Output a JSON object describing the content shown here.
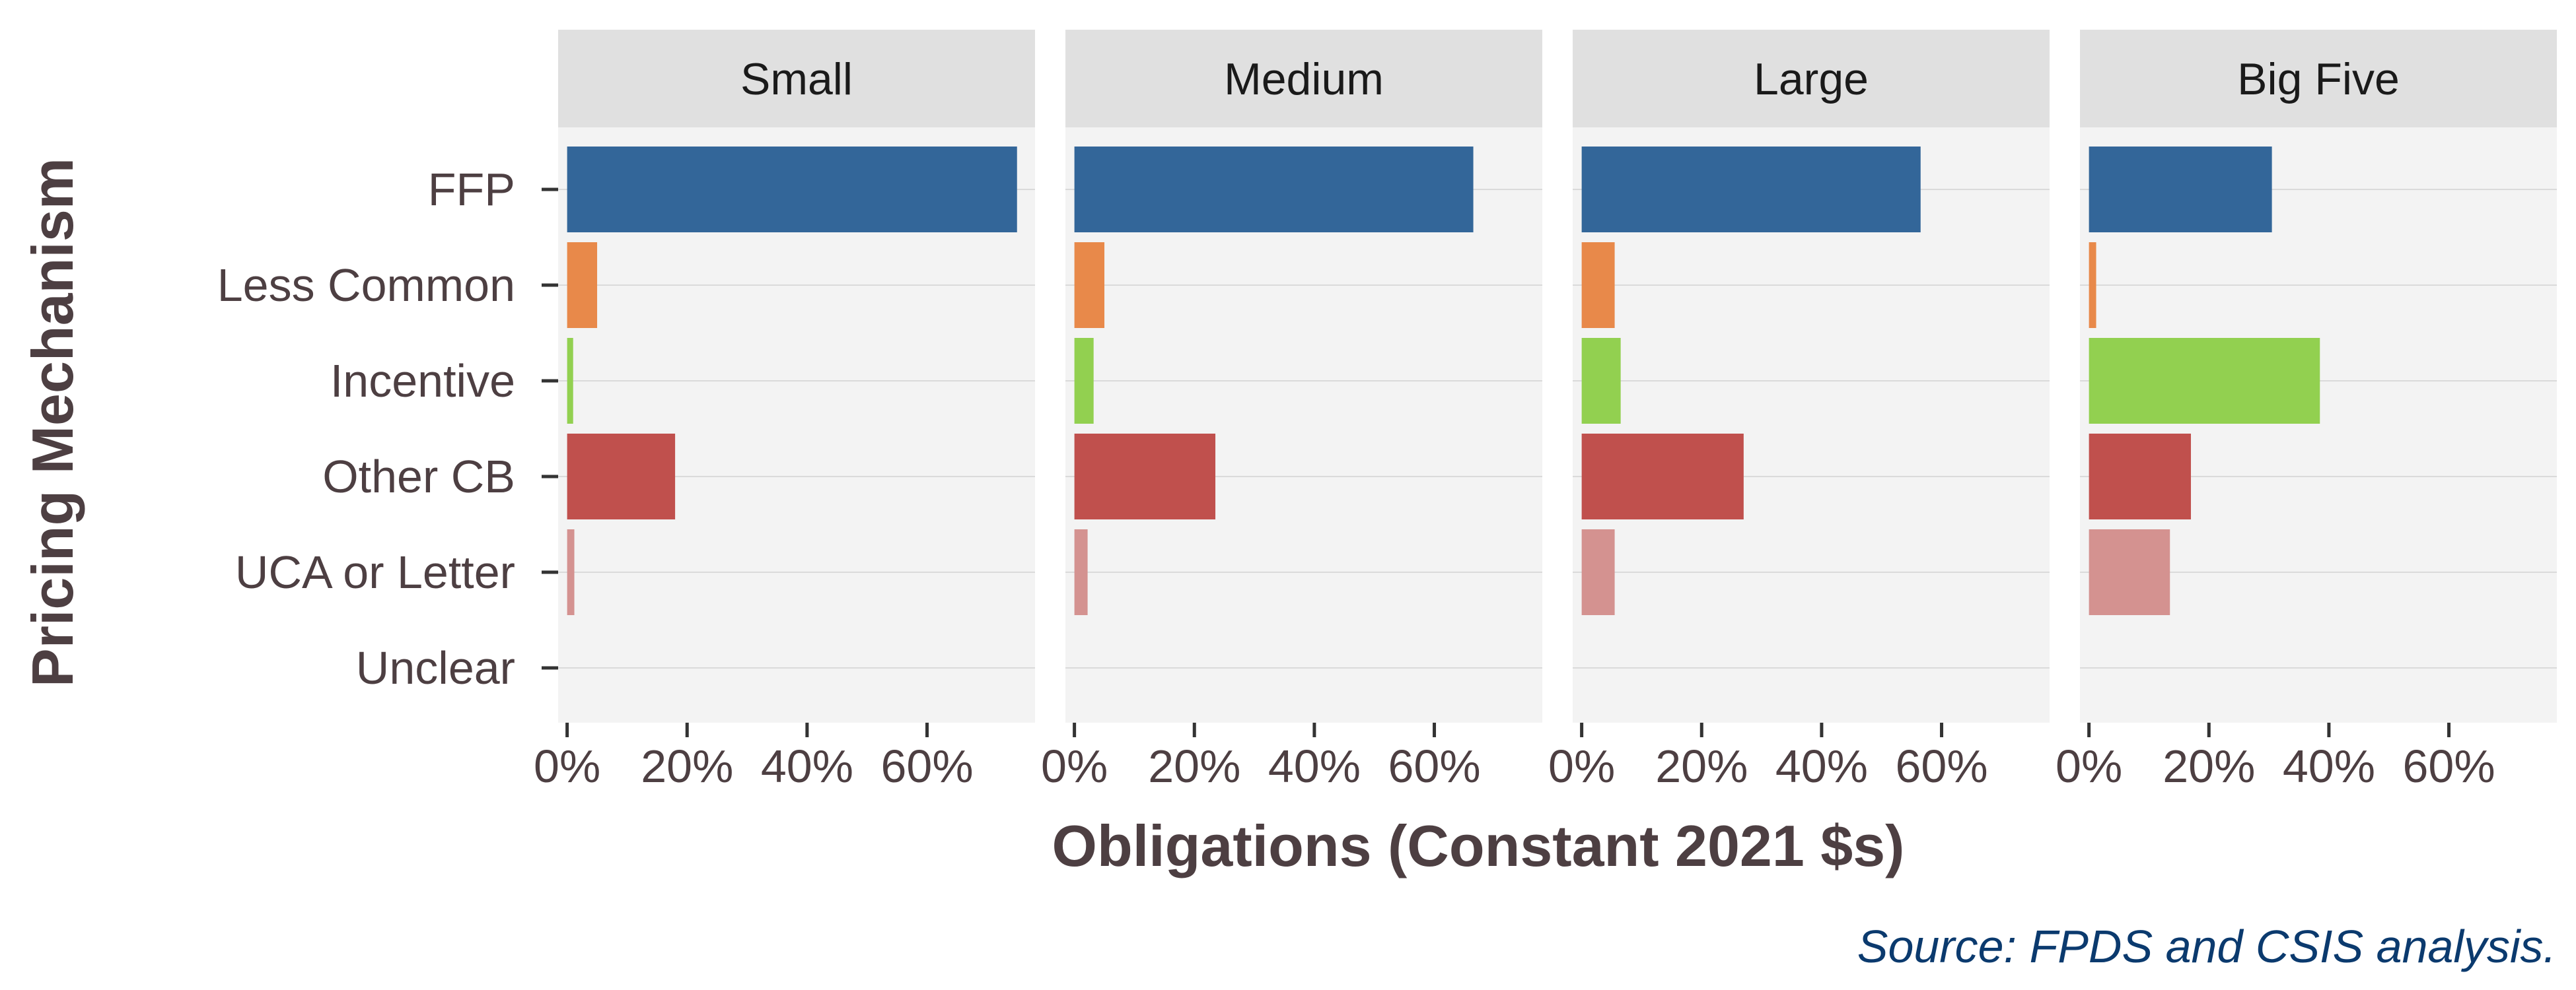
{
  "chart_data": {
    "type": "bar",
    "orientation": "horizontal",
    "facets": [
      "Small",
      "Medium",
      "Large",
      "Big Five"
    ],
    "categories": [
      "Unclear",
      "UCA or Letter",
      "Other CB",
      "Incentive",
      "Less Common",
      "FFP"
    ],
    "category_colors": [
      "#6e6e6e",
      "#d49290",
      "#c0504d",
      "#92d050",
      "#e8894a",
      "#336699"
    ],
    "values": {
      "Small": [
        0,
        1.2,
        18,
        1.0,
        5,
        75
      ],
      "Medium": [
        0,
        2.2,
        23.5,
        3.2,
        5,
        66.5
      ],
      "Large": [
        0,
        5.5,
        27,
        6.5,
        5.5,
        56.5
      ],
      "Big Five": [
        0,
        13.5,
        17,
        38.5,
        1.2,
        30.5
      ]
    },
    "xlim": [
      -1.5,
      78
    ],
    "x_ticks": [
      0,
      20,
      40,
      60
    ],
    "x_tick_labels": [
      "0%",
      "20%",
      "40%",
      "60%"
    ],
    "xlabel": "Obligations (Constant 2021 $s)",
    "ylabel": "Pricing Mechanism",
    "grid": true,
    "legend": "none",
    "caption": "Source: FPDS and CSIS analysis."
  }
}
